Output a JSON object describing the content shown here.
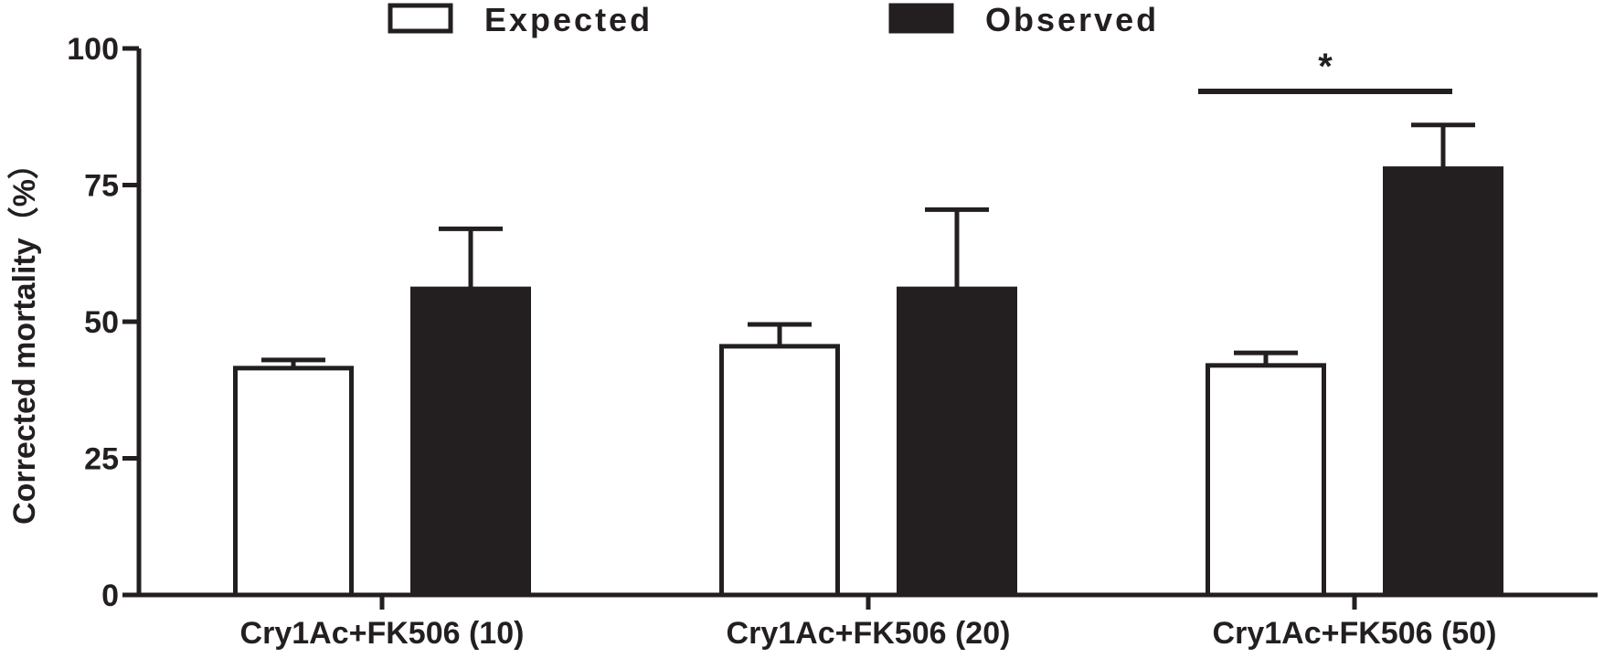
{
  "chart_data": {
    "type": "bar",
    "ylabel": "Corrected mortality（%）",
    "ylim": [
      0,
      100
    ],
    "yticks": [
      "0",
      "25",
      "50",
      "75",
      "100"
    ],
    "categories": [
      "Cry1Ac+FK506 (10)",
      "Cry1Ac+FK506 (20)",
      "Cry1Ac+FK506 (50)"
    ],
    "series": [
      {
        "name": "Expected",
        "fill": "white",
        "values": [
          41.5,
          45.5,
          42.0
        ],
        "errors": [
          1.5,
          4.0,
          2.3
        ]
      },
      {
        "name": "Observed",
        "fill": "black",
        "values": [
          56.0,
          56.0,
          78.0
        ],
        "errors": [
          11.0,
          14.5,
          8.0
        ]
      }
    ],
    "legend_position": "top",
    "significance": {
      "category": "Cry1Ac+FK506 (50)",
      "label": "*"
    },
    "colors": {
      "ink": "#231f20",
      "background": "#ffffff"
    }
  }
}
